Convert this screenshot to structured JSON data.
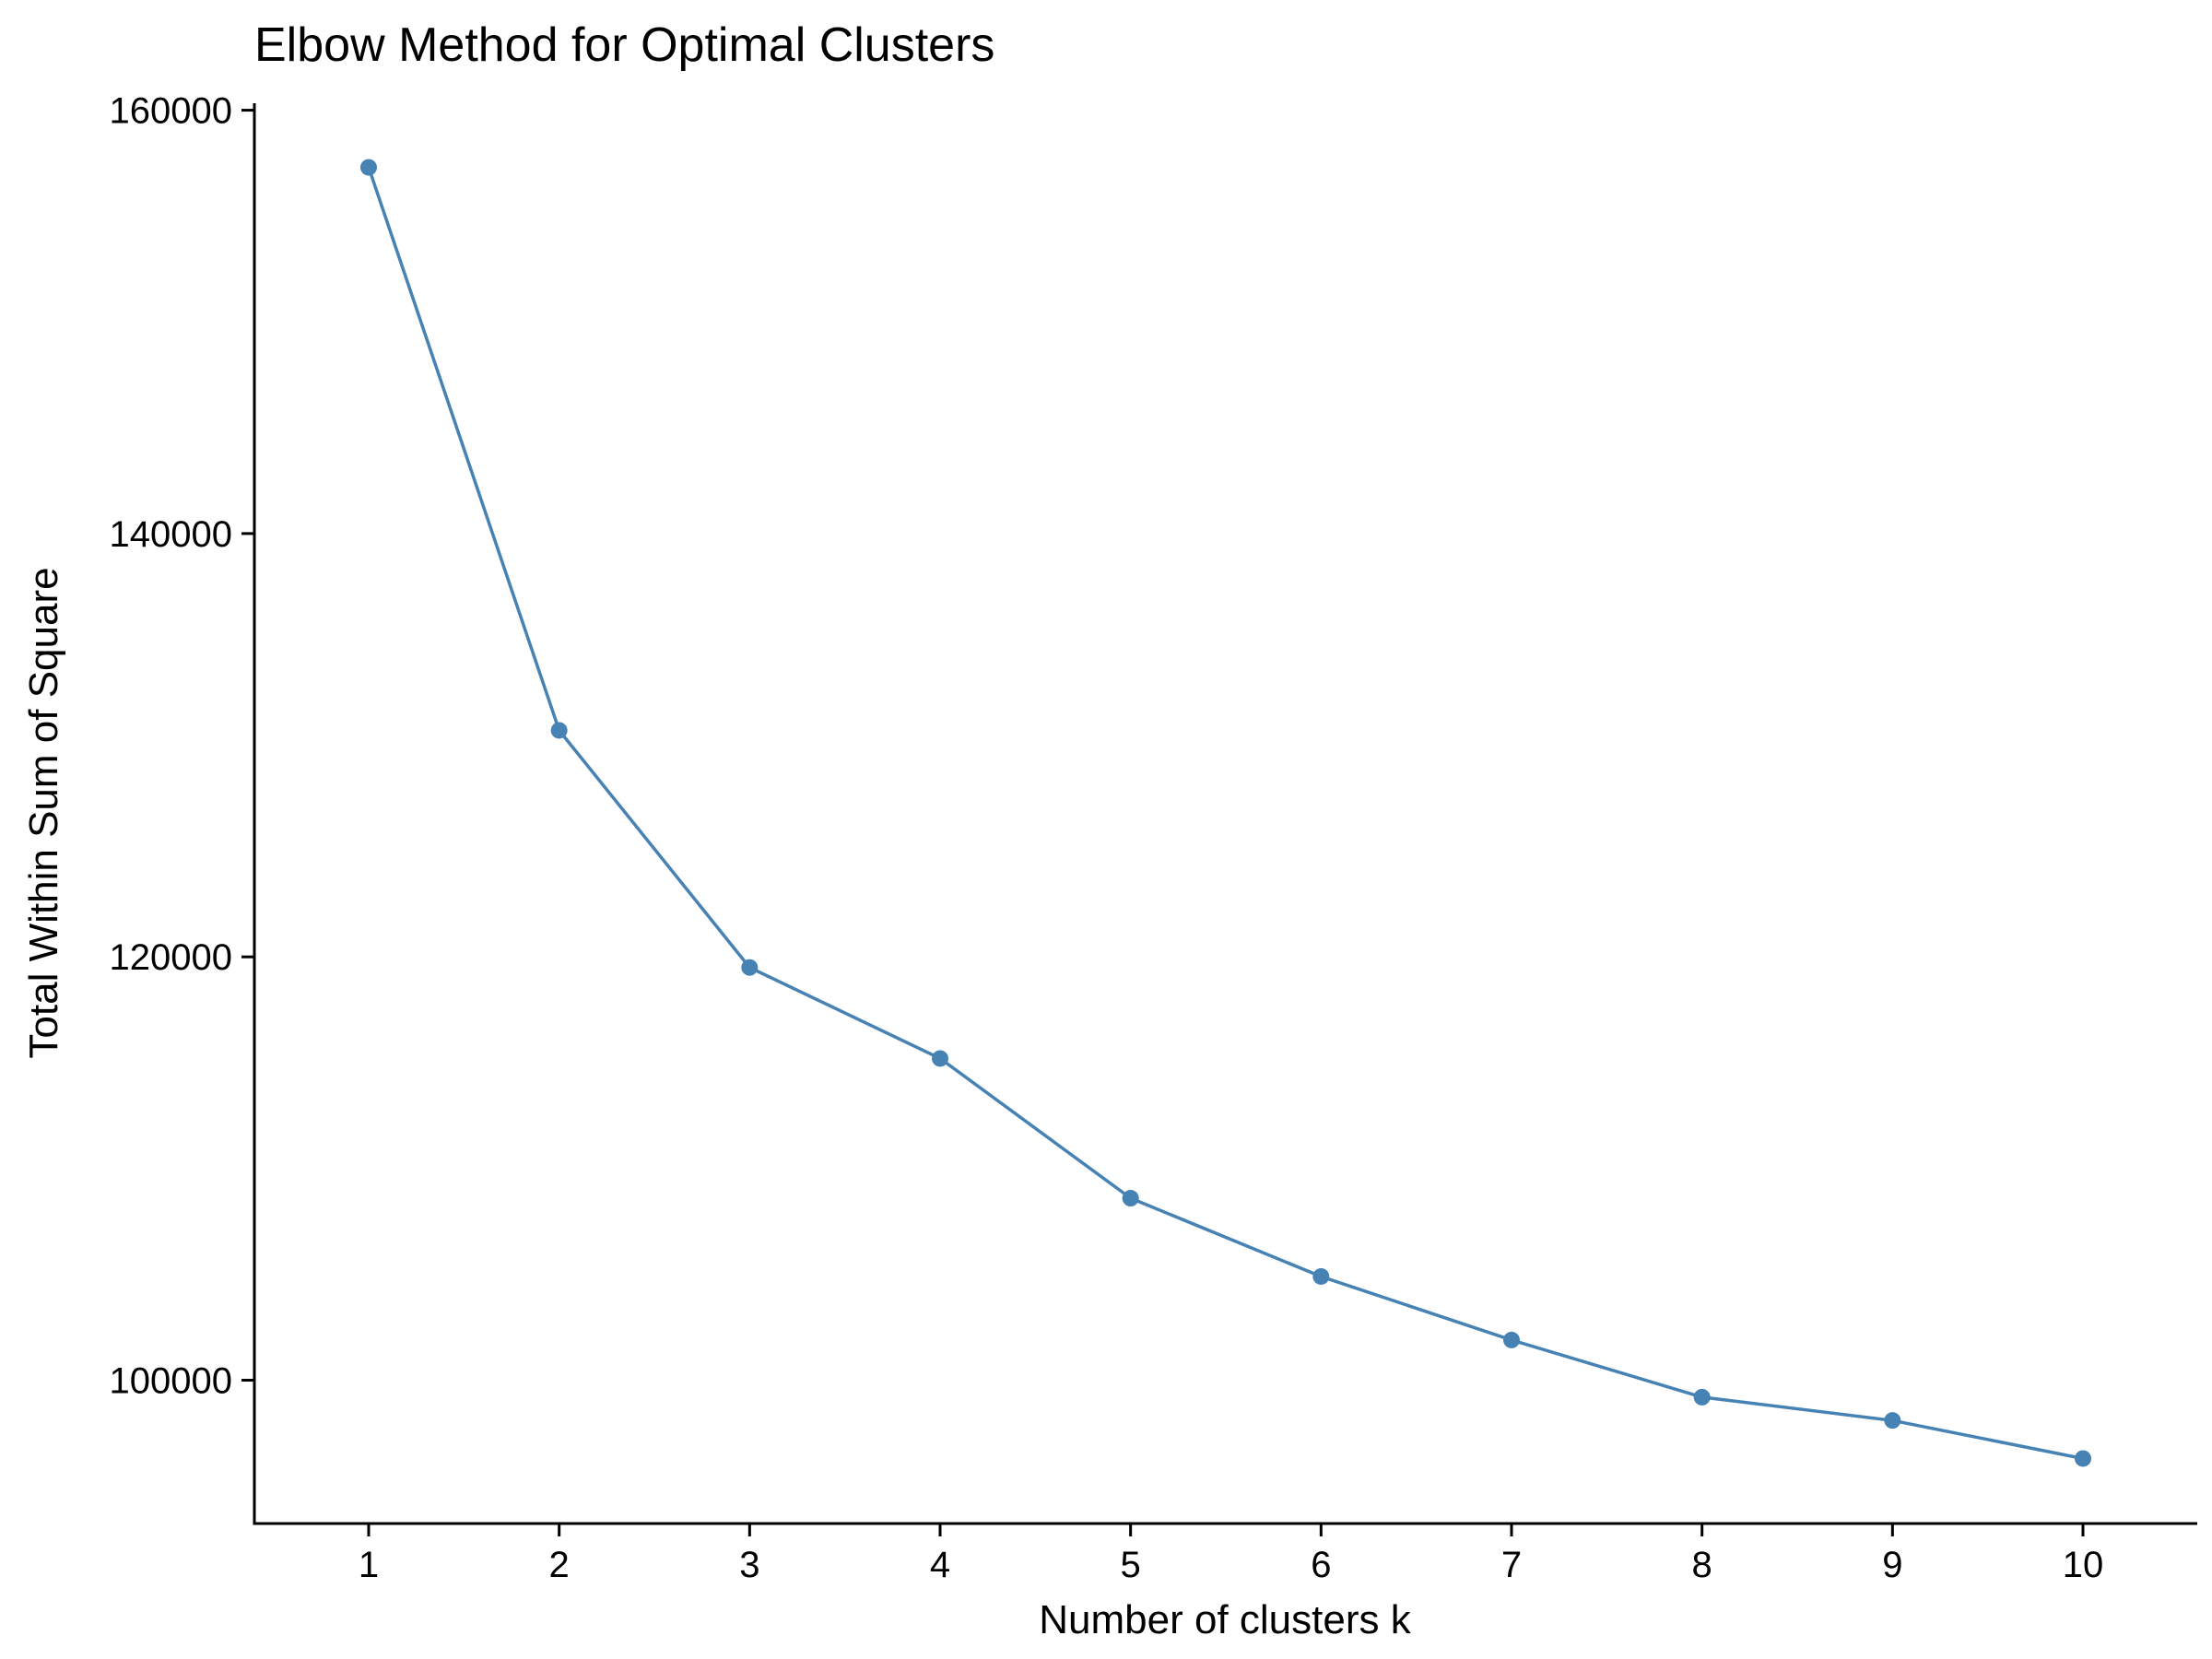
{
  "chart_data": {
    "type": "line",
    "title": "Elbow Method for Optimal Clusters",
    "xlabel": "Number of clusters k",
    "ylabel": "Total Within Sum of Square",
    "x": [
      1,
      2,
      3,
      4,
      5,
      6,
      7,
      8,
      9,
      10
    ],
    "x_ticks": [
      "1",
      "2",
      "3",
      "4",
      "5",
      "6",
      "7",
      "8",
      "9",
      "10"
    ],
    "xlim": [
      0.4,
      10.6
    ],
    "y_ticks": [
      100000,
      120000,
      140000,
      160000
    ],
    "ylim": [
      93230,
      160330
    ],
    "series": [
      {
        "values": [
          157300,
          130700,
          119500,
          115200,
          108600,
          104900,
          101900,
          99200,
          98100,
          96300
        ],
        "color": "#4682b4"
      }
    ],
    "grid": false,
    "legend": "none"
  }
}
